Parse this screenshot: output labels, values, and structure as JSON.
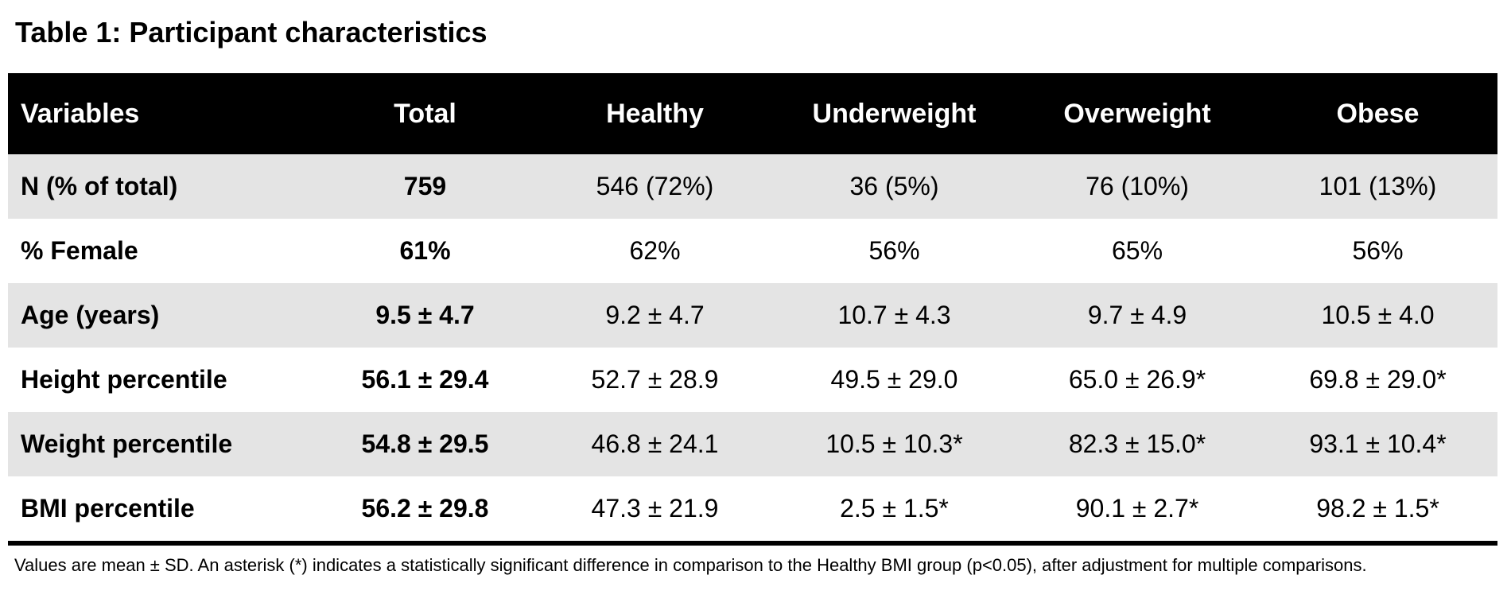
{
  "title": "Table 1: Participant characteristics",
  "table": {
    "columns": [
      "Variables",
      "Total",
      "Healthy",
      "Underweight",
      "Overweight",
      "Obese"
    ],
    "rows": [
      {
        "label": "N (% of total)",
        "values": [
          "759",
          "546 (72%)",
          "36 (5%)",
          "76 (10%)",
          "101 (13%)"
        ]
      },
      {
        "label": "% Female",
        "values": [
          "61%",
          "62%",
          "56%",
          "65%",
          "56%"
        ]
      },
      {
        "label": "Age (years)",
        "values": [
          "9.5 ± 4.7",
          "9.2 ± 4.7",
          "10.7 ± 4.3",
          "9.7 ± 4.9",
          "10.5 ± 4.0"
        ]
      },
      {
        "label": "Height percentile",
        "values": [
          "56.1 ± 29.4",
          "52.7 ± 28.9",
          "49.5 ± 29.0",
          "65.0 ± 26.9*",
          "69.8 ± 29.0*"
        ]
      },
      {
        "label": "Weight percentile",
        "values": [
          "54.8 ± 29.5",
          "46.8 ± 24.1",
          "10.5 ± 10.3*",
          "82.3 ± 15.0*",
          "93.1 ± 10.4*"
        ]
      },
      {
        "label": "BMI percentile",
        "values": [
          "56.2 ± 29.8",
          "47.3 ± 21.9",
          "2.5 ± 1.5*",
          "90.1 ± 2.7*",
          "98.2 ± 1.5*"
        ]
      }
    ]
  },
  "footnote": "Values are mean ± SD. An asterisk (*) indicates a statistically significant difference in comparison to the Healthy BMI group (p<0.05), after adjustment for multiple comparisons.",
  "colors": {
    "header_bg": "#000000",
    "header_text": "#ffffff",
    "row_stripe": "#e4e4e4",
    "body_text": "#000000"
  }
}
